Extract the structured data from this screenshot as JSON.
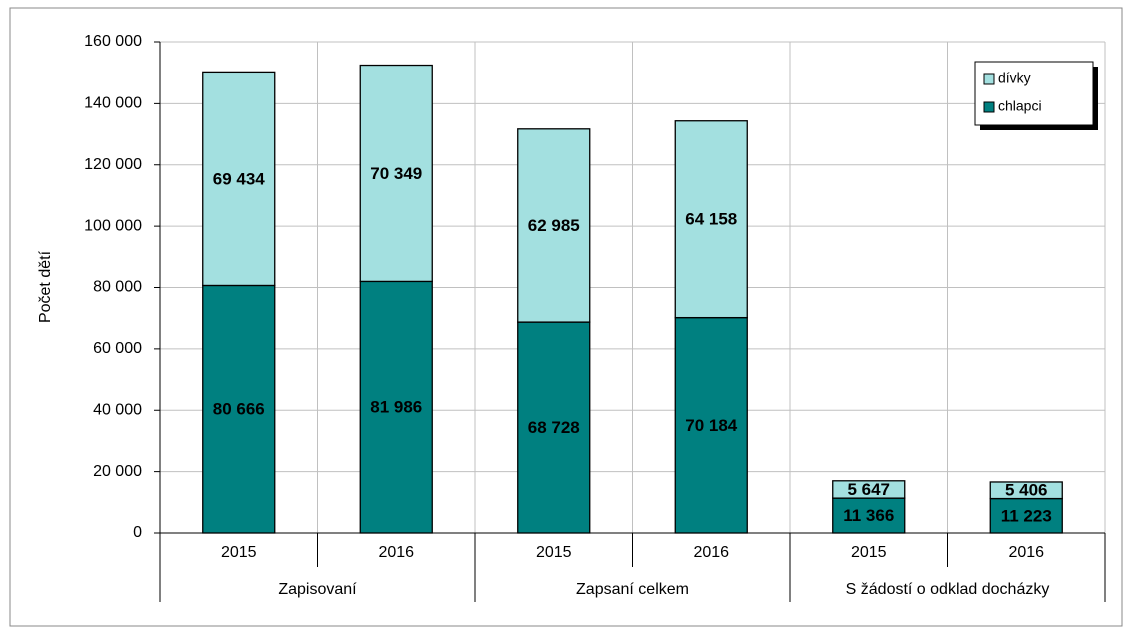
{
  "chart_data": {
    "type": "stacked-bar",
    "y_label": "Počet dětí",
    "categories": [
      "2015",
      "2016",
      "2015",
      "2016",
      "2015",
      "2016"
    ],
    "groups": [
      "Zapisovaní",
      "Zapsaní celkem",
      "S žádostí o odklad docházky"
    ],
    "series": [
      {
        "name": "chlapci",
        "color": "#008080",
        "values": [
          80666,
          81986,
          68728,
          70184,
          11366,
          11223
        ],
        "value_labels": [
          "80 666",
          "81 986",
          "68 728",
          "70 184",
          "11 366",
          "11 223"
        ]
      },
      {
        "name": "dívky",
        "color": "#a3e0e0",
        "values": [
          69434,
          70349,
          62985,
          64158,
          5647,
          5406
        ],
        "value_labels": [
          "69 434",
          "70 349",
          "62 985",
          "64 158",
          "5 647",
          "5 406"
        ]
      }
    ],
    "ylim": [
      0,
      160000
    ],
    "yticks": [
      0,
      {
        "value": 20000,
        "label": "20 000"
      },
      {
        "value": 40000,
        "label": "40 000"
      },
      {
        "value": 60000,
        "label": "60 000"
      },
      {
        "value": 80000,
        "label": "80 000"
      },
      {
        "value": 100000,
        "label": "100 000"
      },
      {
        "value": 120000,
        "label": "120 000"
      },
      {
        "value": 140000,
        "label": "140 000"
      },
      {
        "value": 160000,
        "label": "160 000"
      }
    ],
    "grid": true,
    "legend": "upper right"
  }
}
